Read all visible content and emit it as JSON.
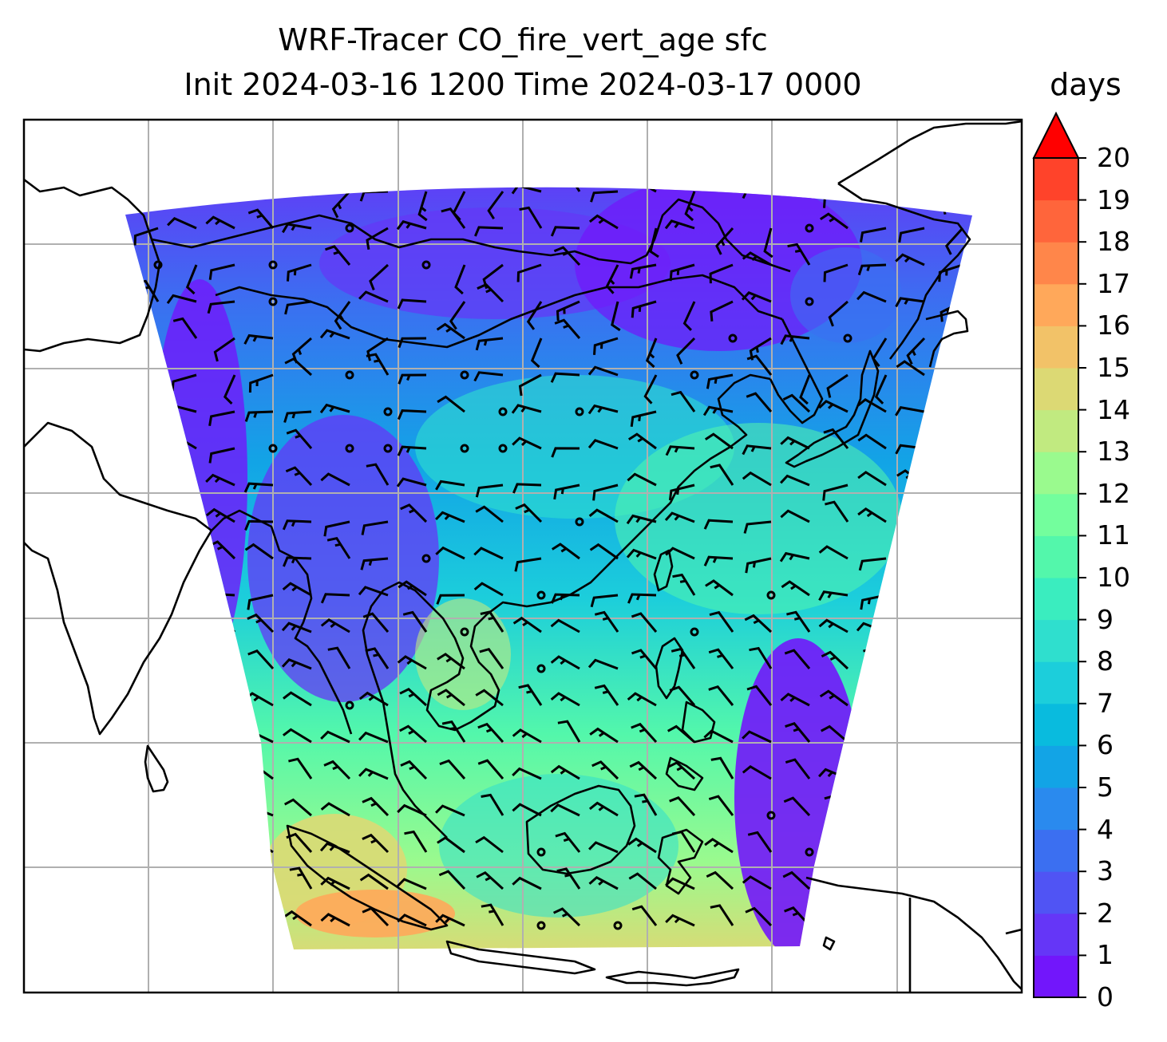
{
  "title": {
    "line1": "WRF-Tracer CO_fire_vert_age sfc",
    "line2": "Init 2024-03-16 1200 Time 2024-03-17 0000"
  },
  "colorbar": {
    "units": "days",
    "ticks": [
      "0",
      "1",
      "2",
      "3",
      "4",
      "5",
      "6",
      "7",
      "8",
      "9",
      "10",
      "11",
      "12",
      "13",
      "14",
      "15",
      "16",
      "17",
      "18",
      "19",
      "20"
    ],
    "extend": "max",
    "colors": [
      "#7216fb",
      "#6536f7",
      "#5054f4",
      "#3b6ff1",
      "#2a8aee",
      "#12a4e6",
      "#09bbde",
      "#1ccedb",
      "#2fdfce",
      "#3aedbf",
      "#53f7ab",
      "#73fe9d",
      "#9afa8e",
      "#c1ea80",
      "#dcd974",
      "#f2c268",
      "#ffa85a",
      "#ff864a",
      "#ff653b",
      "#ff432a",
      "#ff1e16"
    ],
    "extend_color": "#ff0000"
  },
  "map": {
    "field": "CO_fire_vert_age",
    "level": "sfc",
    "colormap": "rainbow",
    "gridlines": true,
    "features": [
      "coastlines",
      "country-borders",
      "wind-barbs"
    ]
  }
}
